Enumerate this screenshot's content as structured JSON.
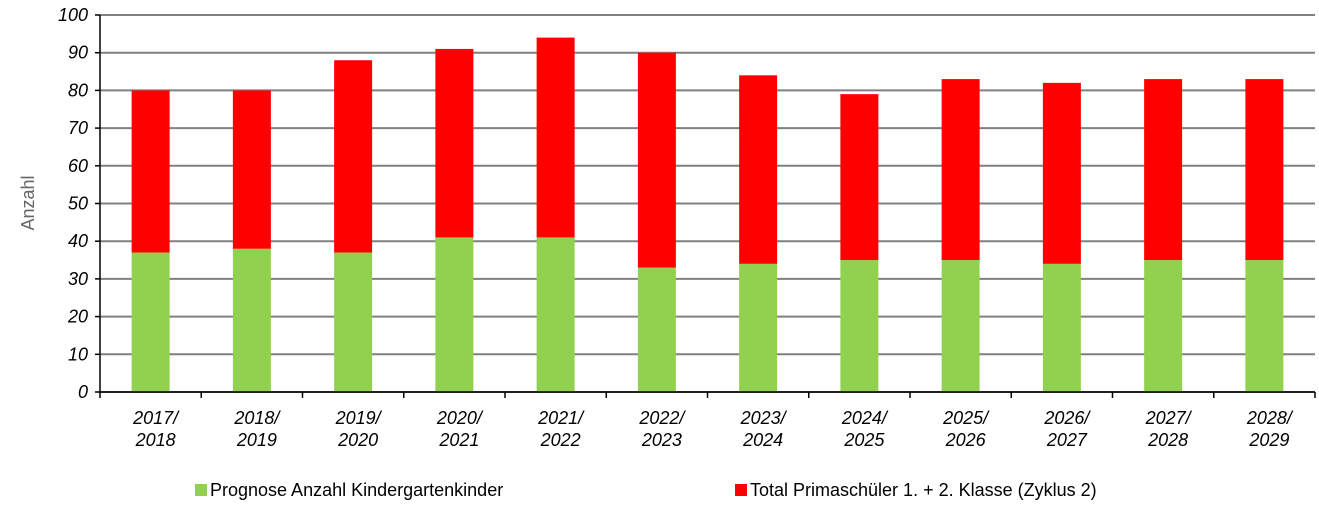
{
  "chart_data": {
    "type": "stacked_bar",
    "y_label": "Anzahl",
    "categories": [
      "2017/\n2018",
      "2018/\n2019",
      "2019/\n2020",
      "2020/\n2021",
      "2021/\n2022",
      "2022/\n2023",
      "2023/\n2024",
      "2024/\n2025",
      "2025/\n2026",
      "2026/\n2027",
      "2027/\n2028",
      "2028/\n2029"
    ],
    "series": [
      {
        "name": "Prognose Anzahl Kindergartenkinder",
        "color": "#92d050",
        "values": [
          37,
          38,
          37,
          41,
          41,
          33,
          34,
          35,
          35,
          34,
          35,
          35
        ]
      },
      {
        "name": "Total Primaschüler 1. + 2. Klasse (Zyklus 2)",
        "color": "#ff0000",
        "values": [
          43,
          42,
          51,
          50,
          53,
          57,
          50,
          44,
          48,
          48,
          48,
          48
        ]
      }
    ],
    "ylim": [
      0,
      100
    ],
    "yticks": [
      0,
      10,
      20,
      30,
      40,
      50,
      60,
      70,
      80,
      90,
      100
    ],
    "grid": true
  }
}
